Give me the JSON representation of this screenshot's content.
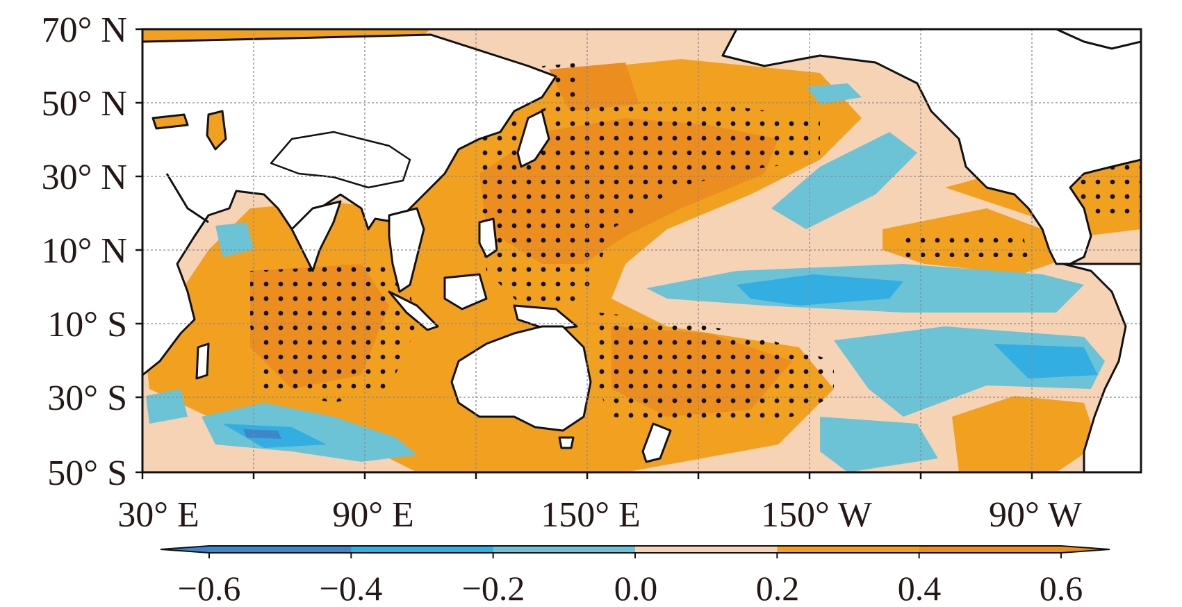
{
  "lat_labels": [
    "70° N",
    "50° N",
    "30° N",
    "10° N",
    "10° S",
    "30° S",
    "50° S"
  ],
  "lon_labels": [
    "30° E",
    "90° E",
    "150° E",
    "150° W",
    "90° W"
  ],
  "colorbar": {
    "labels": [
      "−0.6",
      "−0.4",
      "−0.2",
      "0.0",
      "0.2",
      "0.4",
      "0.6"
    ],
    "colors": [
      "#3f86c9",
      "#33aee3",
      "#6cc3d6",
      "#f7d3b6",
      "#f2a020",
      "#ec8d1f"
    ]
  },
  "colors": {
    "land": "#ffffff",
    "coast": "#111111",
    "stipple": "#111111",
    "grid": "#8a8a8a"
  },
  "chart_data": {
    "type": "heatmap",
    "lon_range": [
      30,
      300
    ],
    "lat_range": [
      -50,
      70
    ],
    "value_range": [
      -0.6,
      0.6
    ],
    "levels": [
      -0.6,
      -0.4,
      -0.2,
      0.0,
      0.2,
      0.4,
      0.6
    ],
    "stippling": "black dots mark significant regions"
  }
}
